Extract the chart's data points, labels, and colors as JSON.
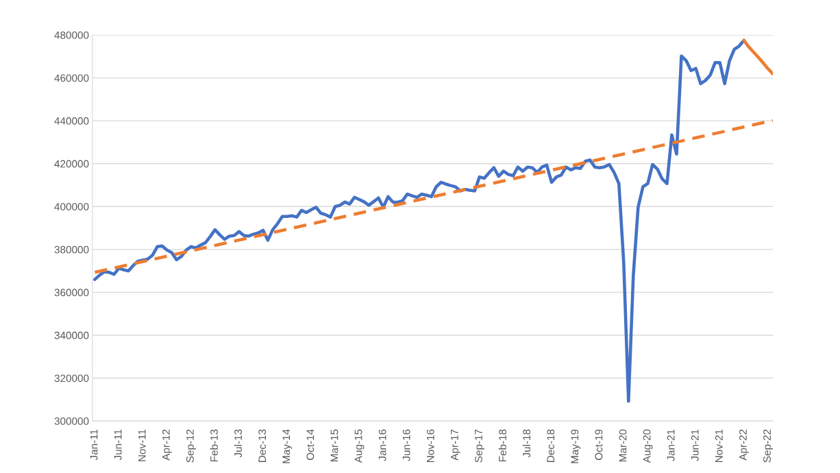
{
  "chart_data": {
    "type": "line",
    "categories": [
      "Jan-11",
      null,
      null,
      null,
      null,
      "Jun-11",
      null,
      null,
      null,
      null,
      "Nov-11",
      null,
      null,
      null,
      null,
      "Apr-12",
      null,
      null,
      null,
      null,
      "Sep-12",
      null,
      null,
      null,
      null,
      "Feb-13",
      null,
      null,
      null,
      null,
      "Jul-13",
      null,
      null,
      null,
      null,
      "Dec-13",
      null,
      null,
      null,
      null,
      "May-14",
      null,
      null,
      null,
      null,
      "Oct-14",
      null,
      null,
      null,
      null,
      "Mar-15",
      null,
      null,
      null,
      null,
      "Aug-15",
      null,
      null,
      null,
      null,
      "Jan-16",
      null,
      null,
      null,
      null,
      "Jun-16",
      null,
      null,
      null,
      null,
      "Nov-16",
      null,
      null,
      null,
      null,
      "Apr-17",
      null,
      null,
      null,
      null,
      "Sep-17",
      null,
      null,
      null,
      null,
      "Feb-18",
      null,
      null,
      null,
      null,
      "Jul-18",
      null,
      null,
      null,
      null,
      "Dec-18",
      null,
      null,
      null,
      null,
      "May-19",
      null,
      null,
      null,
      null,
      "Oct-19",
      null,
      null,
      null,
      null,
      "Mar-20",
      null,
      null,
      null,
      null,
      "Aug-20",
      null,
      null,
      null,
      null,
      "Jan-21",
      null,
      null,
      null,
      null,
      "Jun-21",
      null,
      null,
      null,
      null,
      "Nov-21",
      null,
      null,
      null,
      null,
      "Apr-22",
      null,
      null,
      null,
      null,
      "Sep-22",
      null
    ],
    "series": [
      {
        "color": "#4472c4",
        "line_style": "solid",
        "values": [
          366000,
          368000,
          369600,
          369300,
          368400,
          371200,
          370500,
          370000,
          372500,
          374500,
          375000,
          375500,
          377300,
          381300,
          381600,
          379700,
          378500,
          375200,
          376700,
          379700,
          381300,
          380700,
          382000,
          383100,
          386000,
          389200,
          386800,
          384700,
          386200,
          386500,
          388300,
          386500,
          386200,
          387100,
          387700,
          388900,
          384300,
          389200,
          392000,
          395400,
          395400,
          395700,
          395100,
          398200,
          397200,
          398500,
          399700,
          396900,
          396200,
          395100,
          400000,
          400600,
          402100,
          401200,
          404300,
          403300,
          402200,
          400600,
          402300,
          404000,
          399700,
          404600,
          402100,
          402000,
          402700,
          405800,
          405000,
          404300,
          405800,
          405300,
          404600,
          409200,
          411300,
          410500,
          409800,
          409200,
          407300,
          408000,
          407600,
          407300,
          413800,
          413200,
          415800,
          418100,
          414100,
          416500,
          415000,
          414400,
          418400,
          416500,
          418400,
          418100,
          415900,
          418400,
          419300,
          411300,
          413800,
          414700,
          418400,
          417100,
          418100,
          417800,
          421100,
          421700,
          418400,
          418100,
          418500,
          419600,
          415900,
          410700,
          373900,
          309200,
          367800,
          399700,
          409200,
          410700,
          419600,
          417500,
          412900,
          410700,
          433400,
          424500,
          470200,
          468000,
          463400,
          464400,
          457300,
          458800,
          461300,
          467100,
          467100,
          457300,
          468000,
          473300,
          474800,
          477500,
          null,
          null,
          null,
          null,
          null,
          null
        ]
      },
      {
        "color": "#ed7d31",
        "line_style": "solid",
        "values": [
          null,
          null,
          null,
          null,
          null,
          null,
          null,
          null,
          null,
          null,
          null,
          null,
          null,
          null,
          null,
          null,
          null,
          null,
          null,
          null,
          null,
          null,
          null,
          null,
          null,
          null,
          null,
          null,
          null,
          null,
          null,
          null,
          null,
          null,
          null,
          null,
          null,
          null,
          null,
          null,
          null,
          null,
          null,
          null,
          null,
          null,
          null,
          null,
          null,
          null,
          null,
          null,
          null,
          null,
          null,
          null,
          null,
          null,
          null,
          null,
          null,
          null,
          null,
          null,
          null,
          null,
          null,
          null,
          null,
          null,
          null,
          null,
          null,
          null,
          null,
          null,
          null,
          null,
          null,
          null,
          null,
          null,
          null,
          null,
          null,
          null,
          null,
          null,
          null,
          null,
          null,
          null,
          null,
          null,
          null,
          null,
          null,
          null,
          null,
          null,
          null,
          null,
          null,
          null,
          null,
          null,
          null,
          null,
          null,
          null,
          null,
          null,
          null,
          null,
          null,
          null,
          null,
          null,
          null,
          null,
          null,
          null,
          null,
          null,
          null,
          null,
          null,
          null,
          null,
          null,
          null,
          null,
          null,
          null,
          null,
          477500,
          474500,
          472000,
          469600,
          467000,
          464300,
          461900
        ]
      },
      {
        "color": "#ed7d31",
        "line_style": "dashed",
        "values": [
          369300,
          null,
          null,
          null,
          null,
          null,
          null,
          null,
          null,
          null,
          null,
          null,
          null,
          null,
          null,
          null,
          null,
          null,
          null,
          null,
          null,
          null,
          null,
          null,
          null,
          null,
          null,
          null,
          null,
          null,
          null,
          null,
          null,
          null,
          null,
          null,
          null,
          null,
          null,
          null,
          null,
          null,
          null,
          null,
          null,
          null,
          null,
          null,
          null,
          null,
          null,
          null,
          null,
          null,
          null,
          null,
          null,
          null,
          null,
          null,
          null,
          null,
          null,
          null,
          null,
          null,
          null,
          null,
          null,
          null,
          null,
          null,
          null,
          null,
          null,
          null,
          null,
          null,
          null,
          null,
          null,
          null,
          null,
          null,
          null,
          null,
          null,
          null,
          null,
          null,
          null,
          null,
          null,
          null,
          null,
          null,
          null,
          null,
          null,
          null,
          null,
          null,
          null,
          null,
          null,
          null,
          null,
          null,
          null,
          null,
          null,
          null,
          null,
          null,
          null,
          null,
          null,
          null,
          null,
          null,
          null,
          null,
          null,
          null,
          null,
          null,
          null,
          null,
          null,
          null,
          null,
          null,
          null,
          null,
          null,
          null,
          null,
          null,
          null,
          null,
          null,
          440100
        ]
      }
    ],
    "ylim": [
      300000,
      480000
    ],
    "yticks": [
      300000,
      320000,
      340000,
      360000,
      380000,
      400000,
      420000,
      440000,
      460000,
      480000
    ],
    "grid": "y",
    "legend": false
  }
}
